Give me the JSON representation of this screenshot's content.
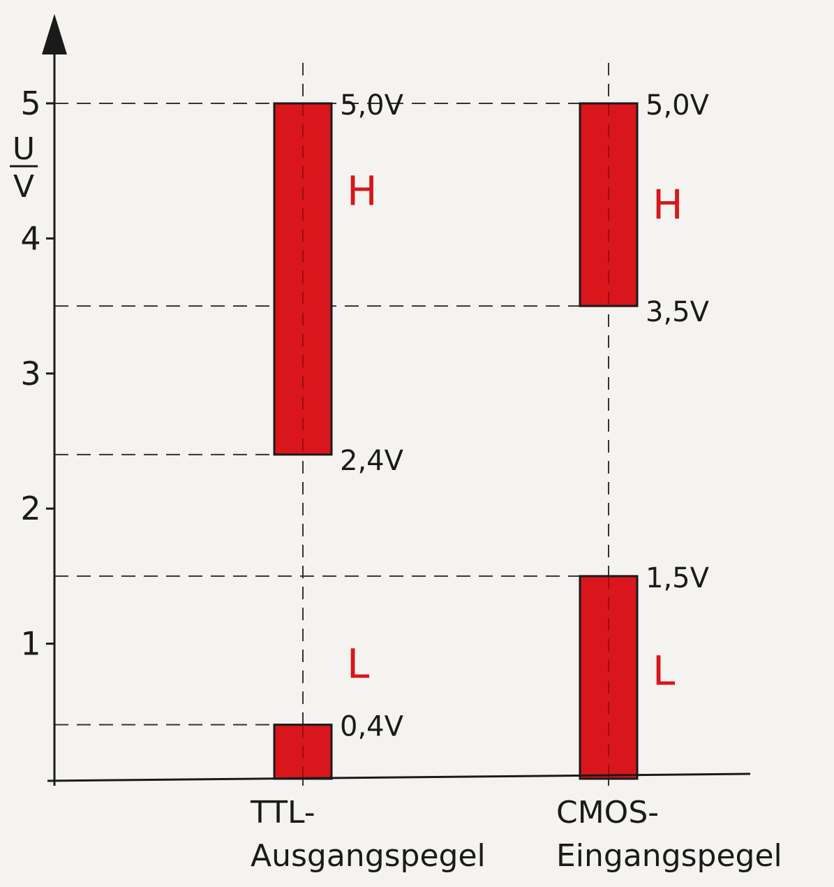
{
  "chart_data": {
    "type": "bar",
    "ylabel": "U",
    "yunit": "V",
    "ylim": [
      0,
      5
    ],
    "yticks": [
      "1",
      "2",
      "3",
      "4",
      "5"
    ],
    "categories": [
      {
        "line1": "TTL-",
        "line2": "Ausgangspegel"
      },
      {
        "line1": "CMOS-",
        "line2": "Eingangspegel"
      }
    ],
    "bar_color": "#d8161b",
    "level_color": "#d8161b",
    "ranges": [
      {
        "category": 0,
        "level": "H",
        "low": 2.4,
        "high": 5.0,
        "low_label": "2,4V",
        "high_label": "5,0V"
      },
      {
        "category": 0,
        "level": "L",
        "low": 0,
        "high": 0.4,
        "low_label": "",
        "high_label": "0,4V"
      },
      {
        "category": 1,
        "level": "H",
        "low": 3.5,
        "high": 5.0,
        "low_label": "3,5V",
        "high_label": "5,0V"
      },
      {
        "category": 1,
        "level": "L",
        "low": 0,
        "high": 1.5,
        "low_label": "",
        "high_label": "1,5V"
      }
    ],
    "legend": "none",
    "grid": "dashed reference lines at range limits"
  }
}
